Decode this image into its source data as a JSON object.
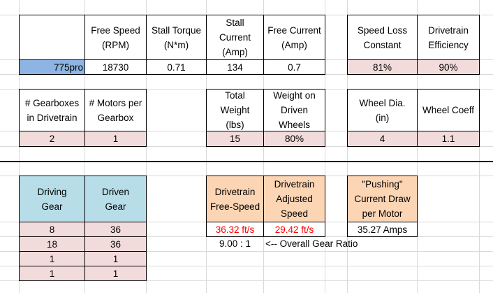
{
  "motor": {
    "name": "775pro",
    "headers": [
      "Free Speed\n(RPM)",
      "Stall Torque\n(N*m)",
      "Stall\nCurrent\n(Amp)",
      "Free Current\n(Amp)"
    ],
    "values": [
      "18730",
      "0.71",
      "134",
      "0.7"
    ]
  },
  "losses": {
    "headers": [
      "Speed Loss\nConstant",
      "Drivetrain\nEfficiency"
    ],
    "values": [
      "81%",
      "90%"
    ]
  },
  "drivetrain": {
    "headers": [
      "# Gearboxes\nin Drivetrain",
      "# Motors per\nGearbox"
    ],
    "values": [
      "2",
      "1"
    ]
  },
  "weight": {
    "headers": [
      "Total\nWeight\n(lbs)",
      "Weight on\nDriven\nWheels"
    ],
    "values": [
      "15",
      "80%"
    ]
  },
  "wheel": {
    "headers": [
      "Wheel Dia.\n(in)",
      "Wheel Coeff"
    ],
    "values": [
      "4",
      "1.1"
    ]
  },
  "gears": {
    "headers": [
      "Driving\nGear",
      "Driven\nGear"
    ],
    "rows": [
      [
        "8",
        "36"
      ],
      [
        "18",
        "36"
      ],
      [
        "1",
        "1"
      ],
      [
        "1",
        "1"
      ]
    ]
  },
  "results": {
    "headers": [
      "Drivetrain\nFree-Speed",
      "Drivetrain\nAdjusted\nSpeed"
    ],
    "values": [
      "36.32 ft/s",
      "29.42 ft/s"
    ]
  },
  "pushing": {
    "header": "\"Pushing\"\nCurrent Draw\nper Motor",
    "value": "35.27 Amps"
  },
  "ratio": {
    "value": "9.00 : 1",
    "label": "<-- Overall Gear Ratio"
  }
}
